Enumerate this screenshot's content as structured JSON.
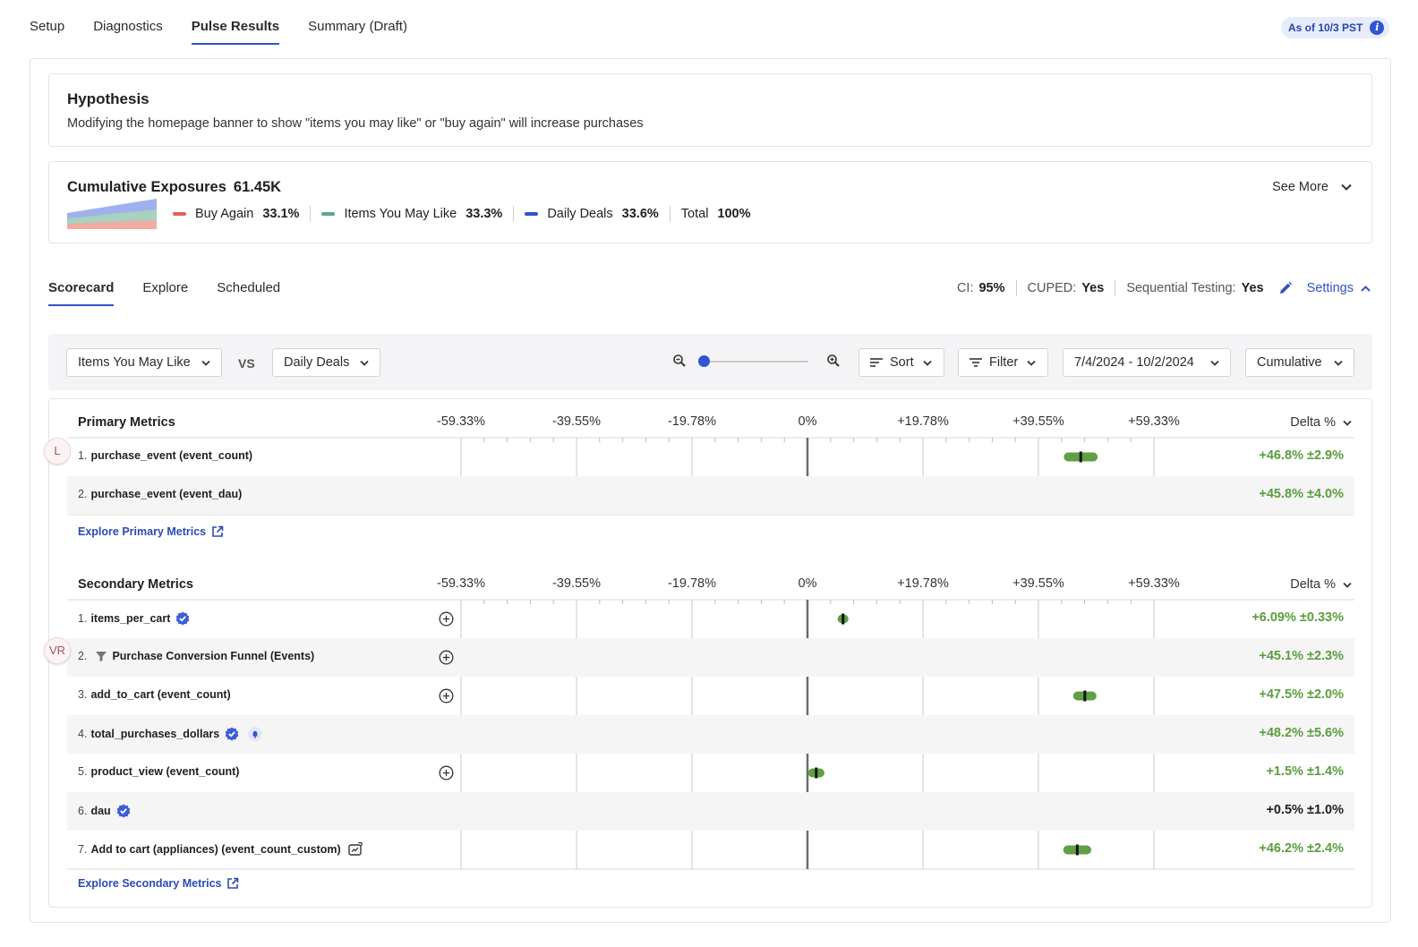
{
  "top_tabs": [
    {
      "label": "Setup",
      "active": false
    },
    {
      "label": "Diagnostics",
      "active": false
    },
    {
      "label": "Pulse Results",
      "active": true
    },
    {
      "label": "Summary (Draft)",
      "active": false
    }
  ],
  "as_of": {
    "label": "As of 10/3 PST",
    "icon": "info-icon"
  },
  "hypothesis": {
    "title": "Hypothesis",
    "text": "Modifying the homepage banner to show \"items you may like\" or \"buy again\" will increase purchases"
  },
  "exposures": {
    "title": "Cumulative Exposures",
    "count": "61.45K",
    "see_more": "See More",
    "groups": [
      {
        "name": "Buy Again",
        "pct": "33.1%",
        "color": "#e4604f"
      },
      {
        "name": "Items You May Like",
        "pct": "33.3%",
        "color": "#5aa68a"
      },
      {
        "name": "Daily Deals",
        "pct": "33.6%",
        "color": "#3553c5"
      }
    ],
    "total_label": "Total",
    "total_pct": "100%"
  },
  "sub_tabs": [
    {
      "label": "Scorecard",
      "active": true
    },
    {
      "label": "Explore",
      "active": false
    },
    {
      "label": "Scheduled",
      "active": false
    }
  ],
  "settings_bar": {
    "ci_label": "CI:",
    "ci_value": "95%",
    "cuped_label": "CUPED:",
    "cuped_value": "Yes",
    "seq_label": "Sequential Testing:",
    "seq_value": "Yes",
    "settings_link": "Settings"
  },
  "toolbar": {
    "test_group": "Items You May Like",
    "vs": "VS",
    "control_group": "Daily Deals",
    "zoom_level": 0,
    "sort": "Sort",
    "filter": "Filter",
    "date_range": "7/4/2024 - 10/2/2024",
    "mode": "Cumulative"
  },
  "axis_ticks": [
    "-59.33%",
    "-39.55%",
    "-19.78%",
    "0%",
    "+19.78%",
    "+39.55%",
    "+59.33%"
  ],
  "axis_values": [
    -59.33,
    -39.55,
    -19.78,
    0,
    19.78,
    39.55,
    59.33
  ],
  "delta_header": "Delta %",
  "primary": {
    "title": "Primary Metrics",
    "explore_link": "Explore Primary Metrics",
    "avatar": "L",
    "rows": [
      {
        "num": "1.",
        "name": "purchase_event (event_count)",
        "delta": "+46.8% ±2.9%",
        "mean": 46.8,
        "ci": 2.9,
        "significant": true
      },
      {
        "num": "2.",
        "name": "purchase_event (event_dau)",
        "delta": "+45.8% ±4.0%",
        "mean": 45.8,
        "ci": 4.0,
        "significant": true
      }
    ]
  },
  "secondary": {
    "title": "Secondary Metrics",
    "explore_link": "Explore Secondary Metrics",
    "avatar": "VR",
    "rows": [
      {
        "num": "1.",
        "name": "items_per_cart",
        "badge": "verified",
        "plus": true,
        "delta": "+6.09% ±0.33%",
        "mean": 6.09,
        "ci": 0.33,
        "significant": true
      },
      {
        "num": "2.",
        "name": "Purchase Conversion Funnel (Events)",
        "badge": "funnel",
        "plus": true,
        "delta": "+45.1% ±2.3%",
        "mean": 45.1,
        "ci": 2.3,
        "significant": true
      },
      {
        "num": "3.",
        "name": "add_to_cart (event_count)",
        "badge": "",
        "plus": true,
        "delta": "+47.5% ±2.0%",
        "mean": 47.5,
        "ci": 2.0,
        "significant": true
      },
      {
        "num": "4.",
        "name": "total_purchases_dollars",
        "badge": "verified-bell",
        "plus": false,
        "delta": "+48.2% ±5.6%",
        "mean": 48.2,
        "ci": 5.6,
        "significant": true
      },
      {
        "num": "5.",
        "name": "product_view (event_count)",
        "badge": "",
        "plus": true,
        "delta": "+1.5% ±1.4%",
        "mean": 1.5,
        "ci": 1.4,
        "significant": true
      },
      {
        "num": "6.",
        "name": "dau",
        "badge": "verified",
        "plus": false,
        "delta": "+0.5% ±1.0%",
        "mean": 0.5,
        "ci": 1.0,
        "significant": false
      },
      {
        "num": "7.",
        "name": "Add to cart (appliances) (event_count_custom)",
        "badge": "custom",
        "plus": false,
        "delta": "+46.2% ±2.4%",
        "mean": 46.2,
        "ci": 2.4,
        "significant": true
      }
    ]
  },
  "colors": {
    "accent": "#3553c5",
    "positive": "#5a9e3c",
    "bar_sig": "#5fa045",
    "bar_neutral": "#cfcfcf",
    "neutral_text": "#1f1f1f"
  }
}
